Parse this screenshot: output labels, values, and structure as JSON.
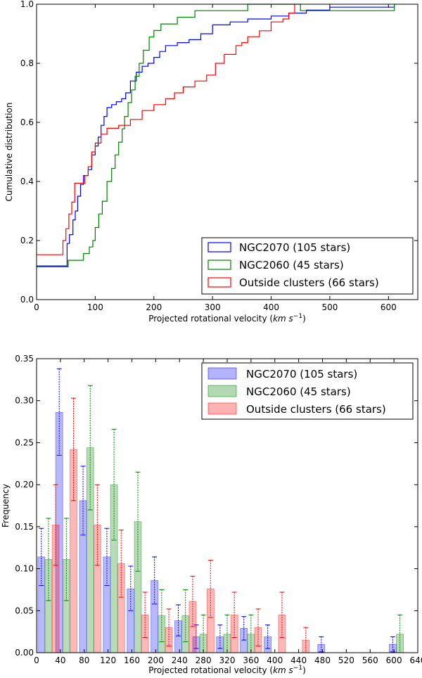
{
  "chart_data": [
    {
      "type": "line",
      "title": "",
      "xlabel": "Projected rotational velocity (km s⁻¹)",
      "xlabel_parts": {
        "text": "Projected rotational velocity (",
        "units": "km s",
        "exp": "−1",
        "close": ")"
      },
      "ylabel": "Cumulative distribution",
      "xlim": [
        0,
        650
      ],
      "ylim": [
        0,
        1.0
      ],
      "xticks": [
        0,
        100,
        200,
        300,
        400,
        500,
        600
      ],
      "yticks": [
        0.0,
        0.2,
        0.4,
        0.6,
        0.8,
        1.0
      ],
      "ytick_labels": [
        "0.0",
        "0.2",
        "0.4",
        "0.6",
        "0.8",
        "1.0"
      ],
      "legend_position": "lower-right",
      "series": [
        {
          "name": "NGC2070 (105 stars)",
          "color": "#0000ff",
          "points": [
            [
              0,
              0.114
            ],
            [
              50,
              0.114
            ],
            [
              52,
              0.19
            ],
            [
              56,
              0.22
            ],
            [
              62,
              0.27
            ],
            [
              66,
              0.3
            ],
            [
              70,
              0.35
            ],
            [
              75,
              0.39
            ],
            [
              80,
              0.42
            ],
            [
              88,
              0.44
            ],
            [
              94,
              0.49
            ],
            [
              100,
              0.52
            ],
            [
              105,
              0.55
            ],
            [
              110,
              0.59
            ],
            [
              115,
              0.62
            ],
            [
              120,
              0.65
            ],
            [
              128,
              0.66
            ],
            [
              136,
              0.67
            ],
            [
              145,
              0.68
            ],
            [
              152,
              0.7
            ],
            [
              160,
              0.74
            ],
            [
              170,
              0.77
            ],
            [
              180,
              0.79
            ],
            [
              190,
              0.8
            ],
            [
              200,
              0.82
            ],
            [
              210,
              0.84
            ],
            [
              220,
              0.86
            ],
            [
              240,
              0.87
            ],
            [
              260,
              0.88
            ],
            [
              280,
              0.9
            ],
            [
              300,
              0.93
            ],
            [
              330,
              0.94
            ],
            [
              360,
              0.95
            ],
            [
              400,
              0.96
            ],
            [
              430,
              0.97
            ],
            [
              460,
              0.98
            ],
            [
              500,
              0.99
            ],
            [
              610,
              1.0
            ]
          ]
        },
        {
          "name": "NGC2060 (45 stars)",
          "color": "#008000",
          "points": [
            [
              0,
              0.111
            ],
            [
              50,
              0.111
            ],
            [
              54,
              0.133
            ],
            [
              80,
              0.156
            ],
            [
              90,
              0.178
            ],
            [
              96,
              0.2
            ],
            [
              100,
              0.244
            ],
            [
              106,
              0.29
            ],
            [
              112,
              0.333
            ],
            [
              120,
              0.4
            ],
            [
              128,
              0.444
            ],
            [
              134,
              0.49
            ],
            [
              140,
              0.533
            ],
            [
              146,
              0.578
            ],
            [
              150,
              0.62
            ],
            [
              156,
              0.667
            ],
            [
              162,
              0.71
            ],
            [
              168,
              0.756
            ],
            [
              175,
              0.8
            ],
            [
              182,
              0.844
            ],
            [
              192,
              0.889
            ],
            [
              200,
              0.911
            ],
            [
              212,
              0.933
            ],
            [
              228,
              0.933
            ],
            [
              240,
              0.956
            ],
            [
              260,
              0.956
            ],
            [
              270,
              0.978
            ],
            [
              350,
              0.978
            ],
            [
              360,
              1.0
            ],
            [
              440,
              1.0
            ],
            [
              450,
              0.978
            ],
            [
              610,
              0.978
            ],
            [
              610,
              1.0
            ]
          ]
        },
        {
          "name": "Outside clusters (66 stars)",
          "color": "#ff0000",
          "points": [
            [
              0,
              0.152
            ],
            [
              40,
              0.152
            ],
            [
              45,
              0.2
            ],
            [
              50,
              0.24
            ],
            [
              55,
              0.29
            ],
            [
              60,
              0.33
            ],
            [
              65,
              0.394
            ],
            [
              78,
              0.394
            ],
            [
              82,
              0.42
            ],
            [
              88,
              0.45
            ],
            [
              94,
              0.5
            ],
            [
              100,
              0.53
            ],
            [
              110,
              0.56
            ],
            [
              120,
              0.58
            ],
            [
              140,
              0.59
            ],
            [
              160,
              0.61
            ],
            [
              180,
              0.64
            ],
            [
              200,
              0.66
            ],
            [
              220,
              0.68
            ],
            [
              235,
              0.7
            ],
            [
              250,
              0.72
            ],
            [
              270,
              0.74
            ],
            [
              290,
              0.76
            ],
            [
              305,
              0.8
            ],
            [
              320,
              0.83
            ],
            [
              340,
              0.86
            ],
            [
              350,
              0.87
            ],
            [
              360,
              0.89
            ],
            [
              380,
              0.91
            ],
            [
              400,
              0.94
            ],
            [
              420,
              0.95
            ],
            [
              430,
              0.97
            ],
            [
              440,
              1.0
            ]
          ]
        }
      ]
    },
    {
      "type": "bar",
      "title": "",
      "xlabel": "Projected rotational velocity (km s⁻¹)",
      "xlabel_parts": {
        "text": "Projected rotational velocity (",
        "units": "km s",
        "exp": "−1",
        "close": ")"
      },
      "ylabel": "Frequency",
      "xlim": [
        0,
        640
      ],
      "ylim": [
        0,
        0.35
      ],
      "xticks": [
        0,
        40,
        80,
        120,
        160,
        200,
        240,
        280,
        320,
        360,
        400,
        440,
        480,
        520,
        560,
        600,
        640
      ],
      "yticks": [
        0.0,
        0.05,
        0.1,
        0.15,
        0.2,
        0.25,
        0.3,
        0.35
      ],
      "ytick_labels": [
        "0.00",
        "0.05",
        "0.10",
        "0.15",
        "0.20",
        "0.25",
        "0.30",
        "0.35"
      ],
      "bin_width": 40,
      "legend_position": "top-right",
      "series": [
        {
          "name": "NGC2070 (105 stars)",
          "color": "#0000ff",
          "offset": -12,
          "bins": [
            20,
            50,
            90,
            130,
            170,
            210,
            250,
            280,
            320,
            360,
            400,
            490,
            610
          ],
          "values": [
            0.114,
            0.286,
            0.181,
            0.114,
            0.076,
            0.086,
            0.038,
            0.019,
            0.019,
            0.029,
            0.019,
            0.01,
            0.01
          ],
          "err_hi": [
            0.148,
            0.338,
            0.222,
            0.148,
            0.103,
            0.114,
            0.057,
            0.033,
            0.033,
            0.043,
            0.033,
            0.019,
            0.019
          ],
          "err_lo": [
            0.08,
            0.235,
            0.14,
            0.08,
            0.05,
            0.058,
            0.02,
            0.005,
            0.005,
            0.015,
            0.005,
            0.001,
            0.001
          ]
        },
        {
          "name": "NGC2060 (45 stars)",
          "color": "#008000",
          "offset": 0,
          "bins": [
            20,
            50,
            90,
            130,
            170,
            210,
            250,
            280,
            320,
            360,
            610
          ],
          "values": [
            0.111,
            0.111,
            0.244,
            0.2,
            0.156,
            0.044,
            0.044,
            0.022,
            0.022,
            0.022,
            0.022
          ],
          "err_hi": [
            0.16,
            0.16,
            0.318,
            0.266,
            0.215,
            0.075,
            0.075,
            0.045,
            0.045,
            0.045,
            0.045
          ],
          "err_lo": [
            0.062,
            0.062,
            0.17,
            0.134,
            0.097,
            0.013,
            0.013,
            0.0,
            0.0,
            0.0,
            0.0
          ]
        },
        {
          "name": "Outside clusters (66 stars)",
          "color": "#ff0000",
          "offset": 12,
          "bins": [
            20,
            50,
            90,
            130,
            170,
            210,
            250,
            280,
            320,
            360,
            400,
            440
          ],
          "values": [
            0.152,
            0.242,
            0.152,
            0.106,
            0.045,
            0.03,
            0.061,
            0.076,
            0.045,
            0.03,
            0.045,
            0.015
          ],
          "err_hi": [
            0.2,
            0.303,
            0.2,
            0.146,
            0.072,
            0.052,
            0.091,
            0.11,
            0.072,
            0.052,
            0.072,
            0.03
          ],
          "err_lo": [
            0.104,
            0.181,
            0.104,
            0.066,
            0.018,
            0.008,
            0.031,
            0.042,
            0.018,
            0.008,
            0.018,
            0.0
          ]
        }
      ]
    }
  ]
}
